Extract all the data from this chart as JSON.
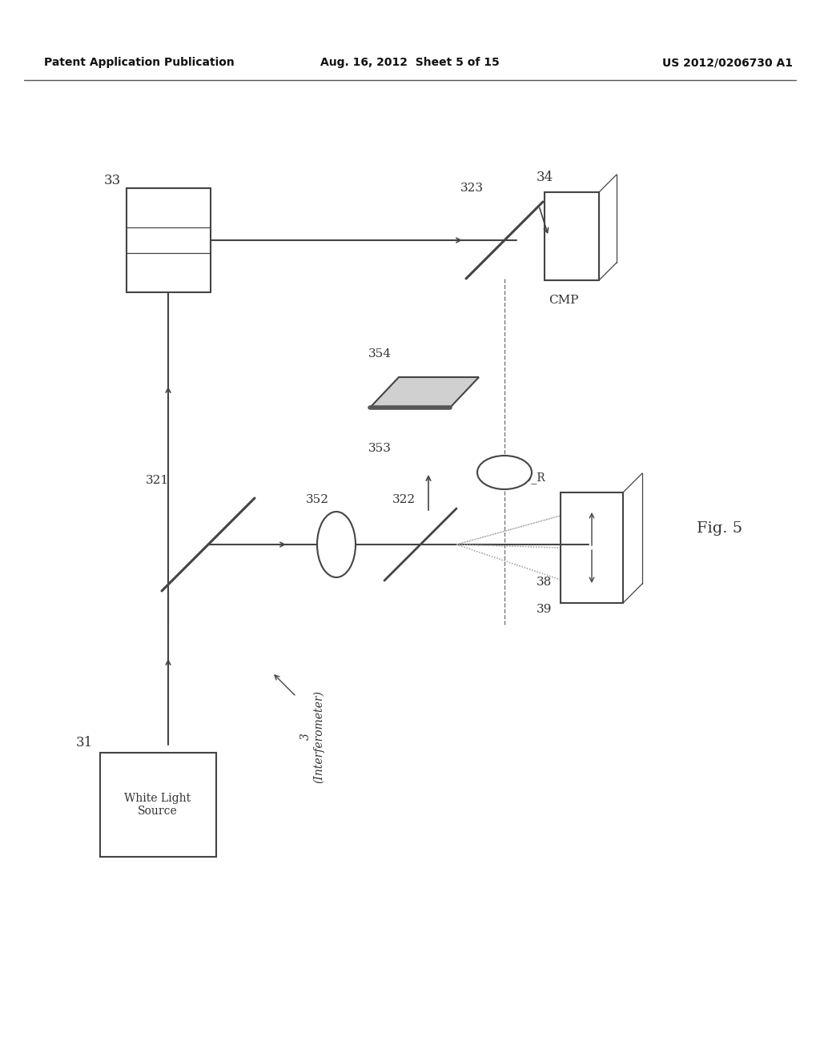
{
  "header_left": "Patent Application Publication",
  "header_center": "Aug. 16, 2012  Sheet 5 of 15",
  "header_right": "US 2012/0206730 A1",
  "bg_color": "#ffffff",
  "line_color": "#444444",
  "label_color": "#333333",
  "fig_label": "Fig. 5"
}
